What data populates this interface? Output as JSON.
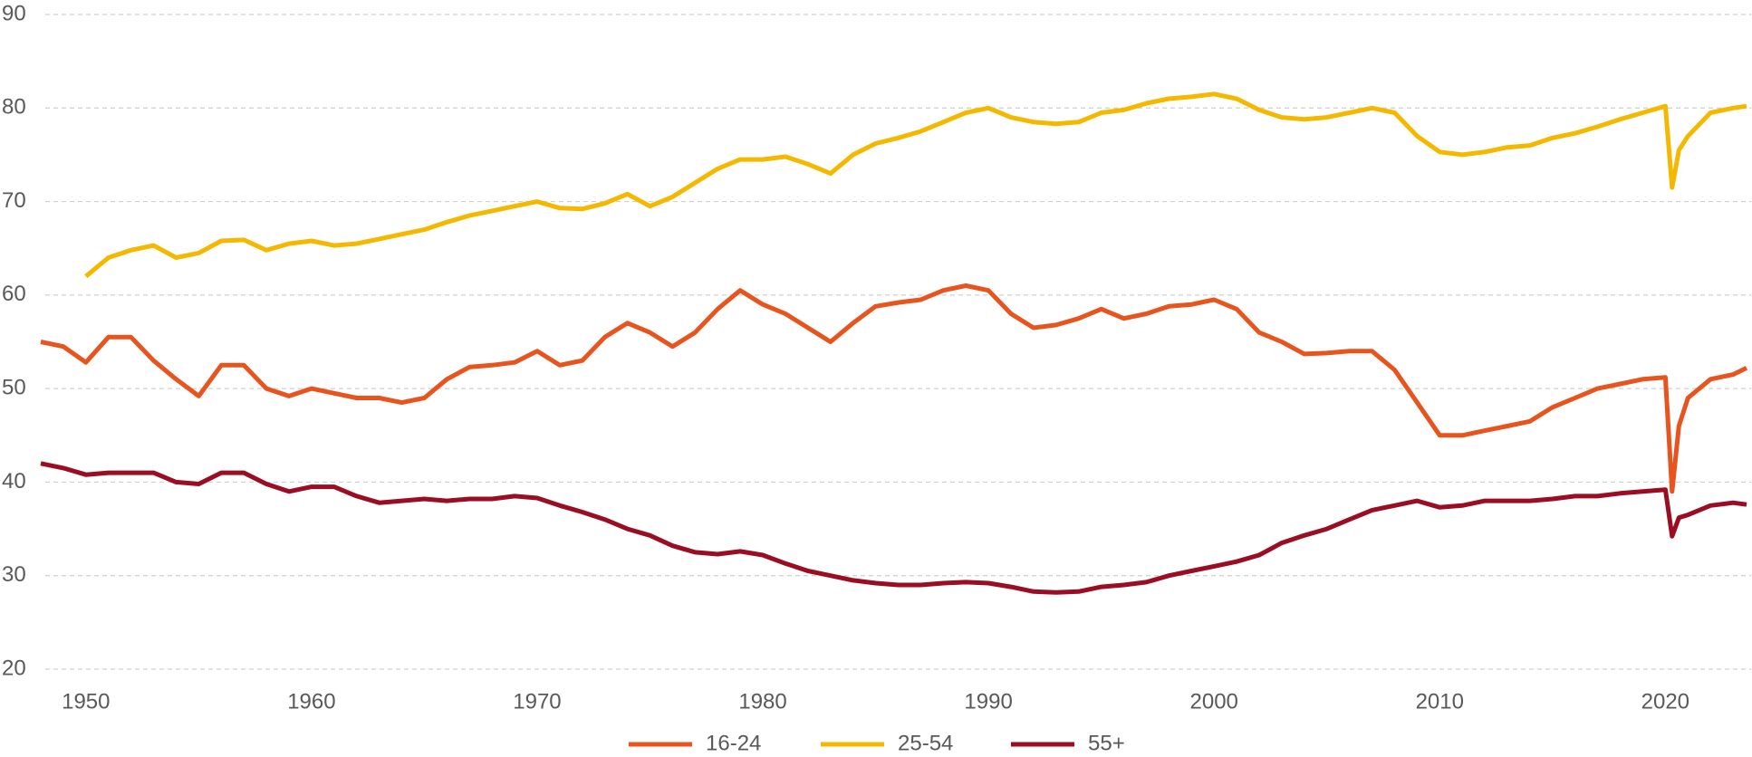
{
  "chart_data": {
    "type": "line",
    "x": [
      1948,
      1949,
      1950,
      1951,
      1952,
      1953,
      1954,
      1955,
      1956,
      1957,
      1958,
      1959,
      1960,
      1961,
      1962,
      1963,
      1964,
      1965,
      1966,
      1967,
      1968,
      1969,
      1970,
      1971,
      1972,
      1973,
      1974,
      1975,
      1976,
      1977,
      1978,
      1979,
      1980,
      1981,
      1982,
      1983,
      1984,
      1985,
      1986,
      1987,
      1988,
      1989,
      1990,
      1991,
      1992,
      1993,
      1994,
      1995,
      1996,
      1997,
      1998,
      1999,
      2000,
      2001,
      2002,
      2003,
      2004,
      2005,
      2006,
      2007,
      2008,
      2009,
      2010,
      2011,
      2012,
      2013,
      2014,
      2015,
      2016,
      2017,
      2018,
      2019,
      2020,
      2020.3,
      2020.6,
      2021,
      2022,
      2023,
      2023.6
    ],
    "series": [
      {
        "name": "16-24",
        "color": "#e8541e",
        "values": [
          55,
          54.5,
          52.8,
          55.5,
          55.5,
          53,
          51,
          49.2,
          52.5,
          52.5,
          50,
          49.2,
          50,
          49.5,
          49,
          49,
          48.5,
          49,
          51,
          52.3,
          52.5,
          52.8,
          54,
          52.5,
          53,
          55.5,
          57,
          56,
          54.5,
          56,
          58.5,
          60.5,
          59,
          58,
          56.5,
          55,
          57,
          58.8,
          59.2,
          59.5,
          60.5,
          61,
          60.5,
          58,
          56.5,
          56.8,
          57.5,
          58.5,
          57.5,
          58,
          58.8,
          59,
          59.5,
          58.5,
          56,
          55,
          53.7,
          53.8,
          54,
          54,
          52,
          48.5,
          45,
          45,
          45.5,
          46,
          46.5,
          48,
          49,
          50,
          50.5,
          51,
          51.2,
          39,
          46,
          49,
          51,
          51.5,
          52.2
        ]
      },
      {
        "name": "25-54",
        "color": "#f5b800",
        "values": [
          null,
          null,
          62,
          64,
          64.8,
          65.3,
          64,
          64.5,
          65.8,
          65.9,
          64.8,
          65.5,
          65.8,
          65.3,
          65.5,
          66,
          66.5,
          67,
          67.8,
          68.5,
          69,
          69.5,
          70,
          69.3,
          69.2,
          69.8,
          70.8,
          69.5,
          70.5,
          72,
          73.5,
          74.5,
          74.5,
          74.8,
          74,
          73,
          75,
          76.2,
          76.8,
          77.5,
          78.5,
          79.5,
          80,
          79,
          78.5,
          78.3,
          78.5,
          79.5,
          79.8,
          80.5,
          81,
          81.2,
          81.5,
          81,
          79.8,
          79,
          78.8,
          79,
          79.5,
          80,
          79.5,
          77,
          75.3,
          75,
          75.3,
          75.8,
          76,
          76.8,
          77.3,
          78,
          78.8,
          79.5,
          80.2,
          71.5,
          75.5,
          77,
          79.5,
          80,
          80.2
        ]
      },
      {
        "name": "55+",
        "color": "#9b0d22",
        "values": [
          42,
          41.5,
          40.8,
          41,
          41,
          41,
          40,
          39.8,
          41,
          41,
          39.8,
          39,
          39.5,
          39.5,
          38.5,
          37.8,
          38,
          38.2,
          38,
          38.2,
          38.2,
          38.5,
          38.3,
          37.5,
          36.8,
          36,
          35,
          34.3,
          33.2,
          32.5,
          32.3,
          32.6,
          32.2,
          31.3,
          30.5,
          30,
          29.5,
          29.2,
          29,
          29,
          29.2,
          29.3,
          29.2,
          28.8,
          28.3,
          28.2,
          28.3,
          28.8,
          29,
          29.3,
          30,
          30.5,
          31,
          31.5,
          32.2,
          33.5,
          34.3,
          35,
          36,
          37,
          37.5,
          38,
          37.3,
          37.5,
          38,
          38,
          38,
          38.2,
          38.5,
          38.5,
          38.8,
          39,
          39.2,
          34.2,
          36.2,
          36.5,
          37.5,
          37.8,
          37.6
        ]
      }
    ],
    "xlim": [
      1948,
      2023.8
    ],
    "xticks": [
      1950,
      1960,
      1970,
      1980,
      1990,
      2000,
      2010,
      2020
    ],
    "ylim": [
      20,
      90
    ],
    "yticks": [
      20,
      30,
      40,
      50,
      60,
      70,
      80,
      90
    ],
    "grid": true,
    "legend": "bottom"
  }
}
